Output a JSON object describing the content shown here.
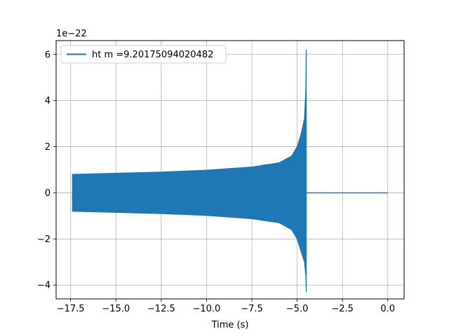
{
  "chart_data": {
    "type": "line",
    "title": "",
    "xlabel": "Time (s)",
    "ylabel": "",
    "offset_text": "1e−22",
    "xlim": [
      -18.3,
      0.9
    ],
    "ylim": [
      -4.6,
      6.6
    ],
    "x_ticks": [
      -17.5,
      -15.0,
      -12.5,
      -10.0,
      -7.5,
      -5.0,
      -2.5,
      0.0
    ],
    "x_tick_labels": [
      "−17.5",
      "−15.0",
      "−12.5",
      "−10.0",
      "−7.5",
      "−5.0",
      "−2.5",
      "0.0"
    ],
    "y_ticks": [
      -4,
      -2,
      0,
      2,
      4,
      6
    ],
    "y_tick_labels": [
      "−4",
      "−2",
      "0",
      "2",
      "4",
      "6"
    ],
    "grid": true,
    "legend_position": "top-left",
    "series": [
      {
        "name": "ht m =9.20175094020482",
        "color": "#1f77b4",
        "x_start": -17.4,
        "merger_time": -4.5,
        "x_end": 0.0,
        "envelope": {
          "x": [
            -17.4,
            -15.0,
            -12.5,
            -10.0,
            -7.5,
            -6.0,
            -5.3,
            -5.0,
            -4.8,
            -4.6,
            -4.52,
            -4.5
          ],
          "upper": [
            0.8,
            0.85,
            0.9,
            0.98,
            1.12,
            1.3,
            1.6,
            2.0,
            2.5,
            3.2,
            4.5,
            6.2
          ],
          "lower": [
            -0.8,
            -0.85,
            -0.9,
            -0.98,
            -1.12,
            -1.3,
            -1.6,
            -2.0,
            -2.5,
            -3.0,
            -3.6,
            -4.3
          ]
        },
        "post_merger_value": 0.0
      }
    ]
  }
}
